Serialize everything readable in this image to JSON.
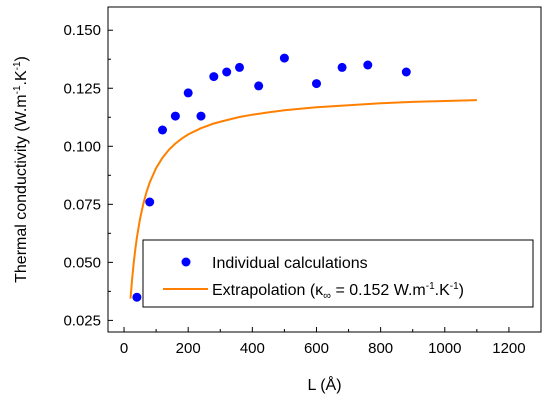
{
  "chart_data": {
    "type": "scatter",
    "title": "",
    "xlabel": "L (Å)",
    "ylabel_parts": [
      "Thermal conductivity (W.m",
      "-1",
      ".K",
      "-1",
      ")"
    ],
    "xlim": [
      -50,
      1300
    ],
    "ylim": [
      0.02,
      0.16
    ],
    "x_ticks": [
      0,
      200,
      400,
      600,
      800,
      1000,
      1200
    ],
    "x_tick_labels": [
      "0",
      "200",
      "400",
      "600",
      "800",
      "1000",
      "1200"
    ],
    "y_ticks": [
      0.025,
      0.05,
      0.075,
      0.1,
      0.125,
      0.15
    ],
    "y_tick_labels": [
      "0.025",
      "0.050",
      "0.075",
      "0.100",
      "0.125",
      "0.150"
    ],
    "grid": false,
    "legend_position": "bottom-right",
    "series": [
      {
        "name": "Individual calculations",
        "kind": "scatter",
        "color": "#0000ff",
        "x": [
          40,
          80,
          120,
          160,
          200,
          240,
          280,
          320,
          360,
          420,
          500,
          600,
          680,
          760,
          880
        ],
        "y": [
          0.035,
          0.076,
          0.107,
          0.113,
          0.123,
          0.113,
          0.13,
          0.132,
          0.134,
          0.126,
          0.138,
          0.127,
          0.134,
          0.135,
          0.132
        ]
      },
      {
        "name_parts": [
          "Extrapolation (",
          "κ",
          "∞",
          " = 0.152 W.m",
          "-1",
          ".K",
          "-1",
          ")"
        ],
        "kind": "line",
        "color": "#ff8000",
        "x": [
          20,
          25,
          30,
          35,
          40,
          50,
          60,
          70,
          80,
          100,
          120,
          140,
          160,
          180,
          200,
          240,
          280,
          320,
          360,
          400,
          450,
          500,
          600,
          700,
          800,
          900,
          1000,
          1100
        ],
        "y": [
          0.0344,
          0.0427,
          0.0497,
          0.0556,
          0.0607,
          0.0689,
          0.0752,
          0.0803,
          0.0844,
          0.0906,
          0.0951,
          0.0985,
          0.1012,
          0.1033,
          0.1051,
          0.1078,
          0.1098,
          0.1113,
          0.1126,
          0.1136,
          0.1146,
          0.1155,
          0.1168,
          0.1177,
          0.1185,
          0.1191,
          0.1195,
          0.1199
        ]
      }
    ]
  }
}
